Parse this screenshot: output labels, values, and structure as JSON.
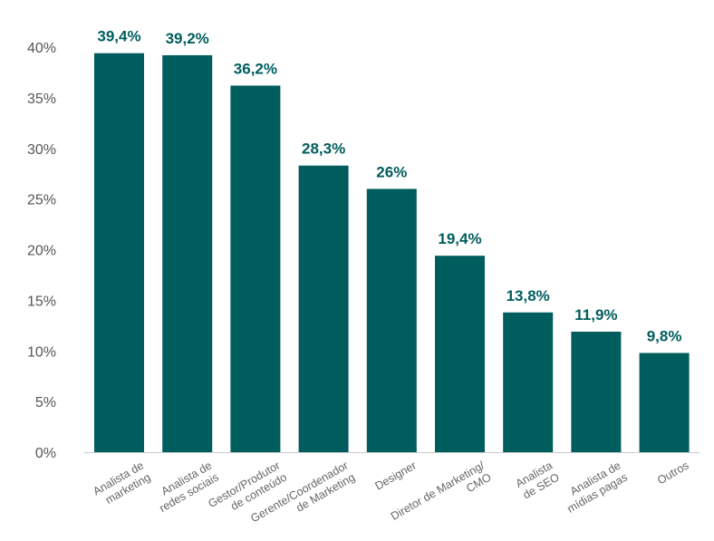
{
  "chart_data": {
    "type": "bar",
    "categories": [
      [
        "Analista de",
        "marketing"
      ],
      [
        "Analista de",
        "redes sociais"
      ],
      [
        "Gestor/Produtor",
        "de conteúdo"
      ],
      [
        "Gerente/Coordenador",
        "de Marketing"
      ],
      [
        "Designer"
      ],
      [
        "Diretor de Marketing/",
        "CMO"
      ],
      [
        "Analista",
        "de SEO"
      ],
      [
        "Analista de",
        "mídias pagas"
      ],
      [
        "Outros"
      ]
    ],
    "values": [
      39.4,
      39.2,
      36.2,
      28.3,
      26,
      19.4,
      13.8,
      11.9,
      9.8
    ],
    "value_labels": [
      "39,4%",
      "39,2%",
      "36,2%",
      "28,3%",
      "26%",
      "19,4%",
      "13,8%",
      "11,9%",
      "9,8%"
    ],
    "y_ticks": [
      0,
      5,
      10,
      15,
      20,
      25,
      30,
      35,
      40
    ],
    "y_tick_labels": [
      "0%",
      "5%",
      "10%",
      "15%",
      "20%",
      "25%",
      "30%",
      "35%",
      "40%"
    ],
    "ylim": [
      0,
      40
    ],
    "grid": false,
    "legend": "none",
    "title": "",
    "xlabel": "",
    "ylabel": "",
    "colors": {
      "bar": "#005d5d",
      "value_label": "#005d5d",
      "axis": "#cccccc"
    }
  }
}
